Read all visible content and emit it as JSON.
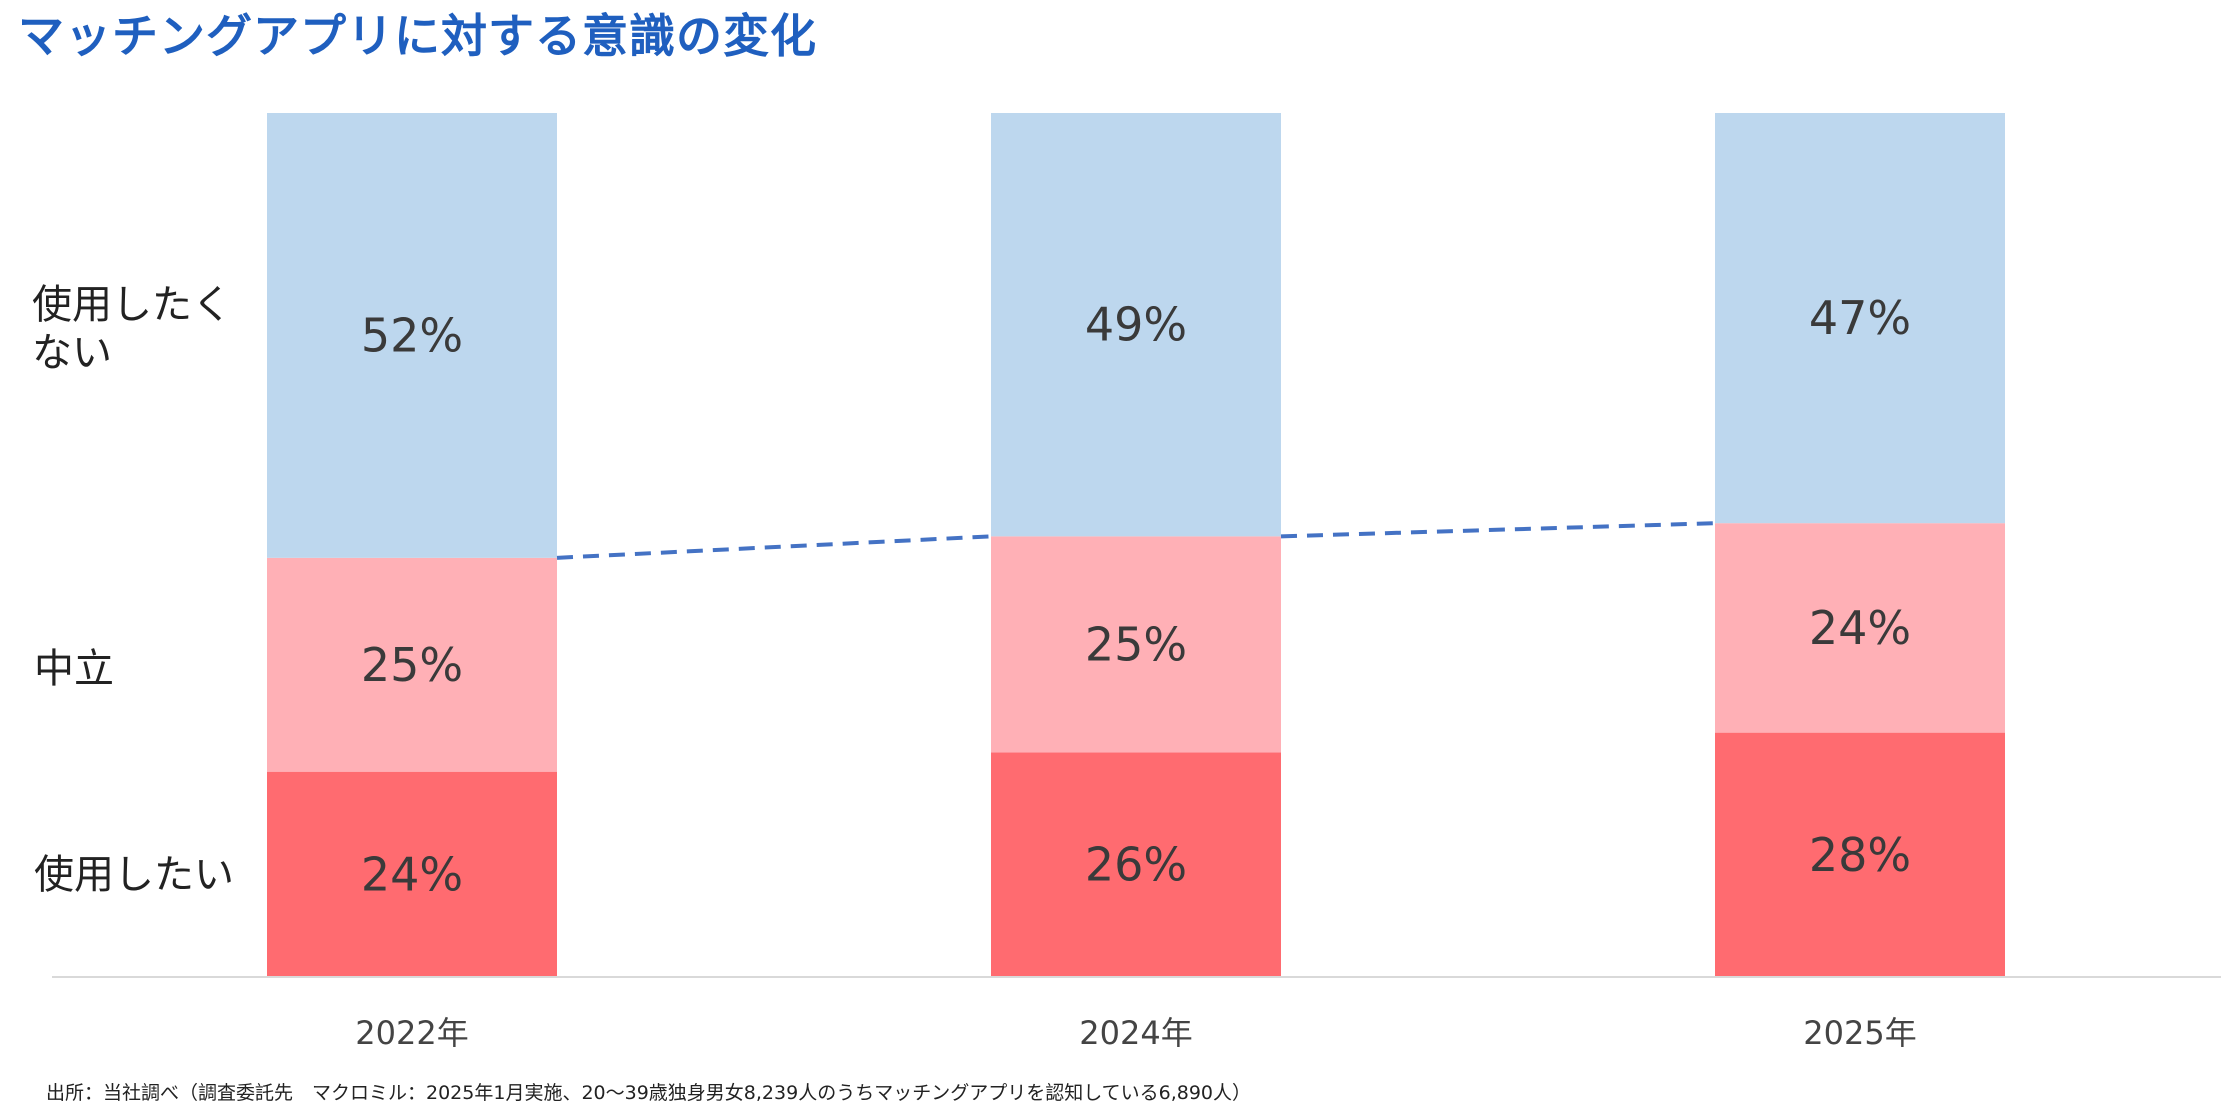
{
  "title": "マッチングアプリに対する意識の変化",
  "source": "出所：当社調べ（調査委託先　マクロミル：2025年1月実施、20～39歳独身男女8,239人のうちマッチングアプリを認知している6,890人）",
  "row_labels": {
    "not_want": [
      "使用したく",
      "ない"
    ],
    "neutral": "中立",
    "want": "使用したい"
  },
  "chart_data": {
    "type": "bar",
    "stacked": true,
    "unit": "%",
    "categories": [
      "2022年",
      "2024年",
      "2025年"
    ],
    "series": [
      {
        "name": "使用したい",
        "values": [
          24,
          26,
          28
        ],
        "color": "#ff6b70"
      },
      {
        "name": "中立",
        "values": [
          25,
          25,
          24
        ],
        "color": "#ffb0b6"
      },
      {
        "name": "使用したくない",
        "values": [
          52,
          49,
          47
        ],
        "color": "#bdd7ee"
      }
    ],
    "data_labels": [
      [
        "24%",
        "26%",
        "28%"
      ],
      [
        "25%",
        "25%",
        "24%"
      ],
      [
        "52%",
        "49%",
        "47%"
      ]
    ],
    "trend_line": {
      "style": "dashed",
      "color": "#4472c4"
    },
    "baseline_color": "#d9d9d9"
  }
}
